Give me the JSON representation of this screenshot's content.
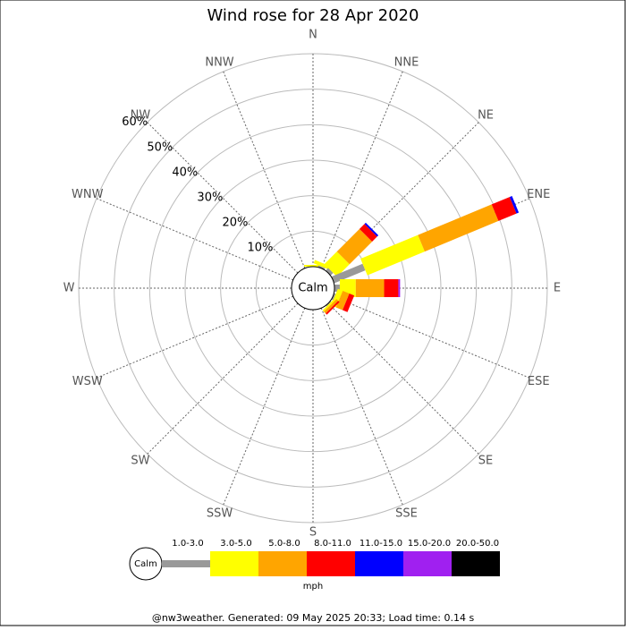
{
  "chart_data": {
    "type": "windrose",
    "title": "Wind rose for 28 Apr 2020",
    "calm_label": "Calm",
    "unit_label": "mph",
    "footer": "@nw3weather. Generated: 09 May 2025 20:33; Load time: 0.14 s",
    "directions": [
      "N",
      "NNE",
      "NE",
      "ENE",
      "E",
      "ESE",
      "SE",
      "SSE",
      "S",
      "SSW",
      "SW",
      "WSW",
      "W",
      "WNW",
      "NW",
      "NNW"
    ],
    "rlim": [
      0,
      60
    ],
    "rticks": [
      {
        "value": 10,
        "label": "10%"
      },
      {
        "value": 20,
        "label": "20%"
      },
      {
        "value": 30,
        "label": "30%"
      },
      {
        "value": 40,
        "label": "40%"
      },
      {
        "value": 50,
        "label": "50%"
      },
      {
        "value": 60,
        "label": "60%"
      }
    ],
    "series": [
      {
        "name": "1.0-3.0",
        "color": "#999999",
        "values": [
          0,
          0.5,
          1,
          9.5,
          1.5,
          0.5,
          0.3,
          0,
          0,
          0,
          0,
          0,
          0,
          0,
          0,
          0
        ]
      },
      {
        "name": "3.0-5.0",
        "color": "#ffff00",
        "values": [
          0.5,
          1,
          5,
          17.5,
          4.5,
          1.5,
          0.5,
          0,
          0,
          0,
          0,
          0,
          0,
          0,
          0,
          0
        ]
      },
      {
        "name": "5.0-8.0",
        "color": "#ffa500",
        "values": [
          0,
          0,
          9,
          22.5,
          8,
          2,
          0.7,
          0,
          0,
          0,
          0,
          0,
          0,
          0,
          0,
          0
        ]
      },
      {
        "name": "8.0-11.0",
        "color": "#ff0000",
        "values": [
          0,
          0,
          2,
          5.5,
          4,
          1.5,
          0.5,
          0,
          0,
          0,
          0,
          0,
          0,
          0,
          0,
          0
        ]
      },
      {
        "name": "11.0-15.0",
        "color": "#0000ff",
        "values": [
          0,
          0,
          0.5,
          0.7,
          0,
          0,
          0,
          0,
          0,
          0,
          0,
          0,
          0,
          0,
          0,
          0
        ]
      },
      {
        "name": "15.0-20.0",
        "color": "#a020f0",
        "values": [
          0,
          0,
          0,
          0,
          0.5,
          0,
          0,
          0,
          0,
          0,
          0,
          0,
          0,
          0,
          0,
          0
        ]
      },
      {
        "name": "20.0-50.0",
        "color": "#000000",
        "values": [
          0,
          0,
          0,
          0,
          0,
          0,
          0,
          0,
          0,
          0,
          0,
          0,
          0,
          0,
          0,
          0
        ]
      }
    ]
  }
}
